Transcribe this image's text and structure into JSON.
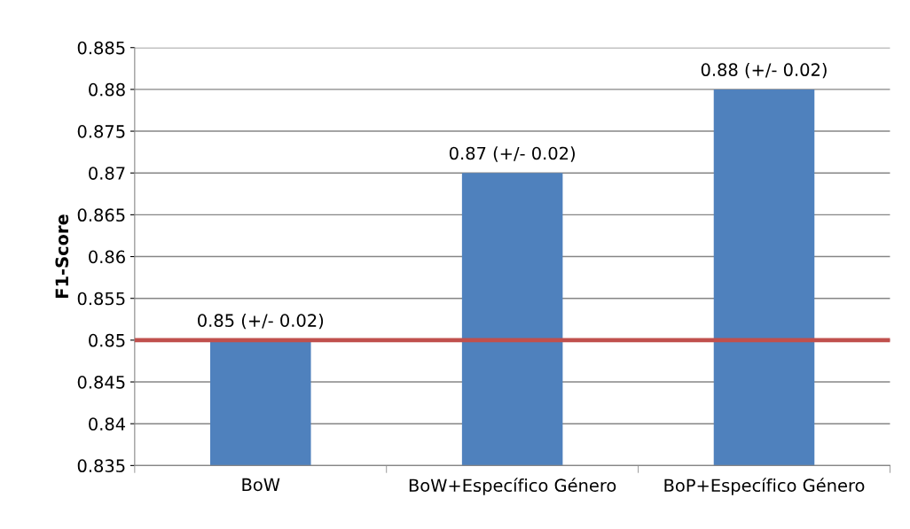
{
  "chart_data": {
    "type": "bar",
    "ylabel": "F1-Score",
    "categories": [
      "BoW",
      "BoW+Específico Género",
      "BoP+Específico Género"
    ],
    "values": [
      0.85,
      0.87,
      0.88
    ],
    "color": "#4f81bd",
    "value_labels": [
      "0.85 (+/- 0.02)",
      "0.87 (+/- 0.02)",
      "0.88 (+/- 0.02)"
    ],
    "ylim": [
      0.835,
      0.885
    ],
    "yticks": [
      0.835,
      0.84,
      0.845,
      0.85,
      0.855,
      0.86,
      0.865,
      0.87,
      0.875,
      0.88,
      0.885
    ],
    "grid": "y",
    "legend": false,
    "ref_lines": [
      {
        "axis": "y",
        "value": 0.85,
        "color": "#c0504d",
        "line_style": "solid"
      }
    ]
  }
}
